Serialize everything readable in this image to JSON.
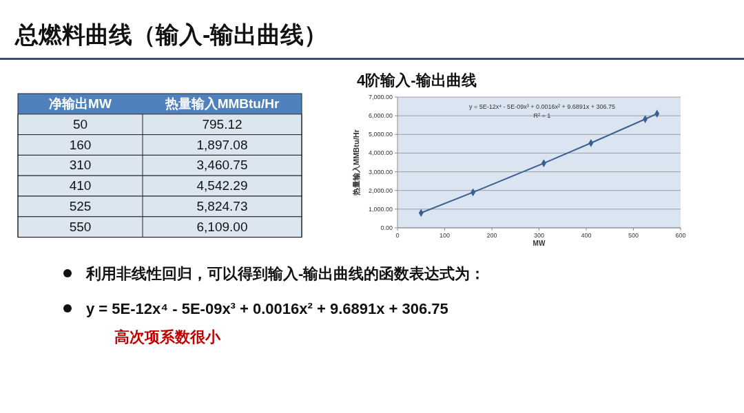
{
  "chart_data": [
    {
      "type": "other",
      "annotations": [
        "净输出MW",
        "热量输入MMBtu/Hr",
        "50",
        "795.12",
        "160",
        "1,897.08",
        "310",
        "3,460.75",
        "410",
        "4,542.29",
        "525",
        "5,824.73",
        "550",
        "6,109.00"
      ]
    },
    {
      "type": "line",
      "title": "总燃料曲线（输入-输出曲线）",
      "subtitle": "4阶输入-输出曲线",
      "xlabel": "MW",
      "ylabel": "热量输入MMBtu/Hr",
      "x": [
        50,
        160,
        310,
        410,
        525,
        550
      ],
      "series": [
        {
          "color": "#3b5f91",
          "values": [
            800,
            1900,
            3460,
            4540,
            5820,
            6110
          ]
        }
      ],
      "xlim": [
        0,
        600
      ],
      "xticks": [
        0,
        100,
        200,
        300,
        400,
        500,
        600
      ],
      "ylim": [
        0,
        7000
      ],
      "yticks": [
        {
          "value": 0,
          "label": "0.00"
        },
        {
          "value": 1000,
          "label": "1,000.00"
        },
        {
          "value": 2000,
          "label": "2,000.00"
        },
        {
          "value": 3000,
          "label": "3,000.00"
        },
        {
          "value": 4000,
          "label": "4,000.00"
        },
        {
          "value": 5000,
          "label": "5,000.00"
        },
        {
          "value": 6000,
          "label": "6,000.00"
        },
        {
          "value": 7000,
          "label": "7,000.00"
        }
      ],
      "grid": "y",
      "marker": "diamond",
      "line_style": "solid",
      "annotations": [
        "y = 5E-12x⁴ - 5E-09x³ + 0.0016x² + 9.6891x + 306.75",
        "R² = 1",
        "利用非线性回归，可以得到输入-输出曲线的函数表达式为：",
        "y = 5E-12x⁴ - 5E-09x³ + 0.0016x² + 9.6891x + 306.75",
        "高次项系数很小"
      ]
    }
  ]
}
